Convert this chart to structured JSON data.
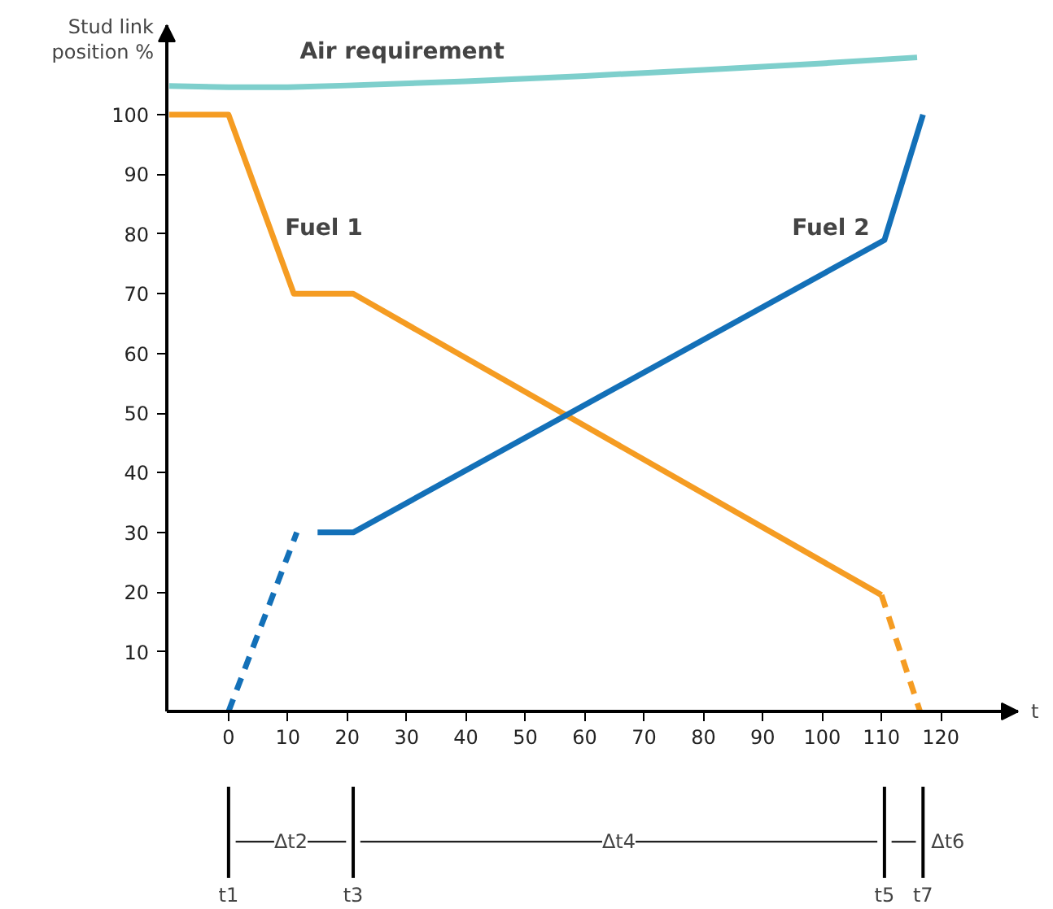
{
  "chart_data": {
    "type": "line",
    "xlabel": "t",
    "ylabel": "Stud link\nposition %",
    "xlim": [
      -10.4,
      133
    ],
    "ylim": [
      0,
      115
    ],
    "xticks": [
      0,
      10,
      20,
      30,
      40,
      50,
      60,
      70,
      80,
      90,
      100,
      110,
      120
    ],
    "yticks": [
      10,
      20,
      30,
      40,
      50,
      60,
      70,
      80,
      90,
      100
    ],
    "grid": false,
    "series": [
      {
        "name": "Air requirement",
        "color": "#7ecfcc",
        "x": [
          -10,
          0,
          10,
          20,
          40,
          60,
          80,
          100,
          116
        ],
        "values": [
          104.8,
          104.6,
          104.6,
          104.9,
          105.6,
          106.5,
          107.5,
          108.6,
          109.6
        ]
      },
      {
        "name": "Fuel 1",
        "color": "#f59c22",
        "x": [
          -10,
          0,
          11,
          21,
          110
        ],
        "values": [
          100,
          100,
          70,
          70,
          19.5
        ]
      },
      {
        "color": "#f59c22",
        "line_style": "dashed",
        "x": [
          110,
          116.5
        ],
        "values": [
          19.5,
          0
        ]
      },
      {
        "name": "Fuel 2",
        "color": "#1370b8",
        "x": [
          15,
          21,
          110.5,
          117
        ],
        "values": [
          30,
          30,
          79,
          100
        ]
      },
      {
        "color": "#1370b8",
        "line_style": "dashed",
        "x": [
          0,
          11.5
        ],
        "values": [
          0,
          30
        ]
      }
    ],
    "ref_lines": [
      {
        "axis": "x",
        "value": 0,
        "label": "t1"
      },
      {
        "axis": "x",
        "value": 21,
        "label": "t3"
      },
      {
        "axis": "x",
        "value": 110.5,
        "label": "t5"
      },
      {
        "axis": "x",
        "value": 117,
        "label": "t7"
      }
    ],
    "annotations": [
      "Δt2",
      "Δt4",
      "Δt6"
    ]
  }
}
